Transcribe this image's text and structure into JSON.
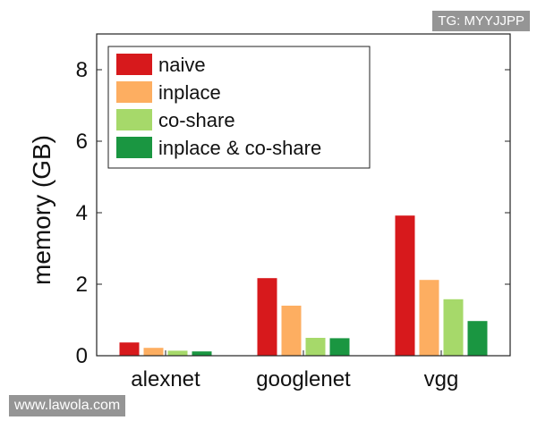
{
  "chart_data": {
    "type": "bar",
    "categories": [
      "alexnet",
      "googlenet",
      "vgg"
    ],
    "series": [
      {
        "name": "naive",
        "color": "#d7191c",
        "values": [
          0.37,
          2.17,
          3.92
        ]
      },
      {
        "name": "inplace",
        "color": "#fdae61",
        "values": [
          0.22,
          1.4,
          2.12
        ]
      },
      {
        "name": "co-share",
        "color": "#a6d96a",
        "values": [
          0.14,
          0.5,
          1.58
        ]
      },
      {
        "name": "inplace & co-share",
        "color": "#1a9641",
        "values": [
          0.12,
          0.49,
          0.97
        ]
      }
    ],
    "ylabel": "memory (GB)",
    "xlabel": "",
    "ylim": [
      0,
      9
    ],
    "yticks": [
      0,
      2,
      4,
      6,
      8
    ],
    "legend_position": "top-left",
    "grid": false
  },
  "watermarks": {
    "top": "TG: MYYJJPP",
    "bottom": "www.lawola.com"
  }
}
